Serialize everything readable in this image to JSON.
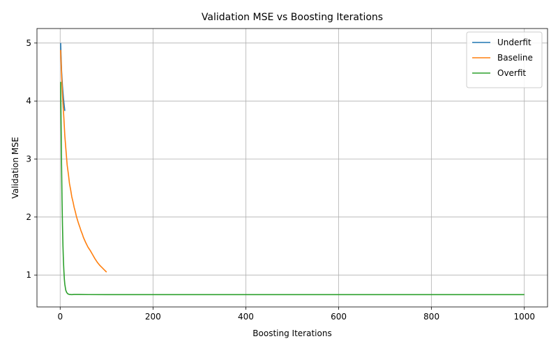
{
  "chart_data": {
    "type": "line",
    "title": "Validation MSE vs Boosting Iterations",
    "xlabel": "Boosting Iterations",
    "ylabel": "Validation MSE",
    "xlim": [
      -50,
      1050
    ],
    "ylim": [
      0.45,
      5.25
    ],
    "xticks": [
      "0",
      "200",
      "400",
      "600",
      "800",
      "1000"
    ],
    "xtick_values": [
      0,
      200,
      400,
      600,
      800,
      1000
    ],
    "yticks": [
      "1",
      "2",
      "3",
      "4",
      "5"
    ],
    "ytick_values": [
      1,
      2,
      3,
      4,
      5
    ],
    "grid": true,
    "legend_position": "top-right",
    "series": [
      {
        "name": "Underfit",
        "color": "#1f77b4",
        "x": [
          1,
          2,
          3,
          4,
          5,
          6,
          7,
          8,
          9,
          10
        ],
        "y": [
          5.0,
          4.75,
          4.52,
          4.38,
          4.25,
          4.15,
          4.05,
          3.97,
          3.9,
          3.83
        ]
      },
      {
        "name": "Baseline",
        "color": "#ff7f0e",
        "x": [
          1,
          3,
          5,
          8,
          10,
          13,
          15,
          18,
          20,
          23,
          25,
          28,
          30,
          33,
          35,
          38,
          40,
          43,
          45,
          48,
          50,
          55,
          60,
          65,
          70,
          75,
          80,
          85,
          90,
          95,
          100
        ],
        "y": [
          4.88,
          4.45,
          4.1,
          3.7,
          3.4,
          3.1,
          2.9,
          2.72,
          2.58,
          2.45,
          2.35,
          2.25,
          2.17,
          2.08,
          2.01,
          1.93,
          1.88,
          1.81,
          1.76,
          1.7,
          1.65,
          1.56,
          1.48,
          1.42,
          1.35,
          1.28,
          1.22,
          1.17,
          1.13,
          1.09,
          1.05
        ]
      },
      {
        "name": "Overfit",
        "color": "#2ca02c",
        "x": [
          1,
          2,
          3,
          4,
          5,
          6,
          7,
          8,
          9,
          10,
          12,
          14,
          16,
          18,
          20,
          25,
          30,
          40,
          60,
          100,
          200,
          400,
          600,
          800,
          1000
        ],
        "y": [
          4.33,
          3.6,
          2.9,
          2.3,
          1.85,
          1.5,
          1.25,
          1.07,
          0.93,
          0.84,
          0.74,
          0.7,
          0.68,
          0.67,
          0.665,
          0.662,
          0.665,
          0.665,
          0.663,
          0.662,
          0.662,
          0.662,
          0.662,
          0.662,
          0.662
        ]
      }
    ]
  }
}
